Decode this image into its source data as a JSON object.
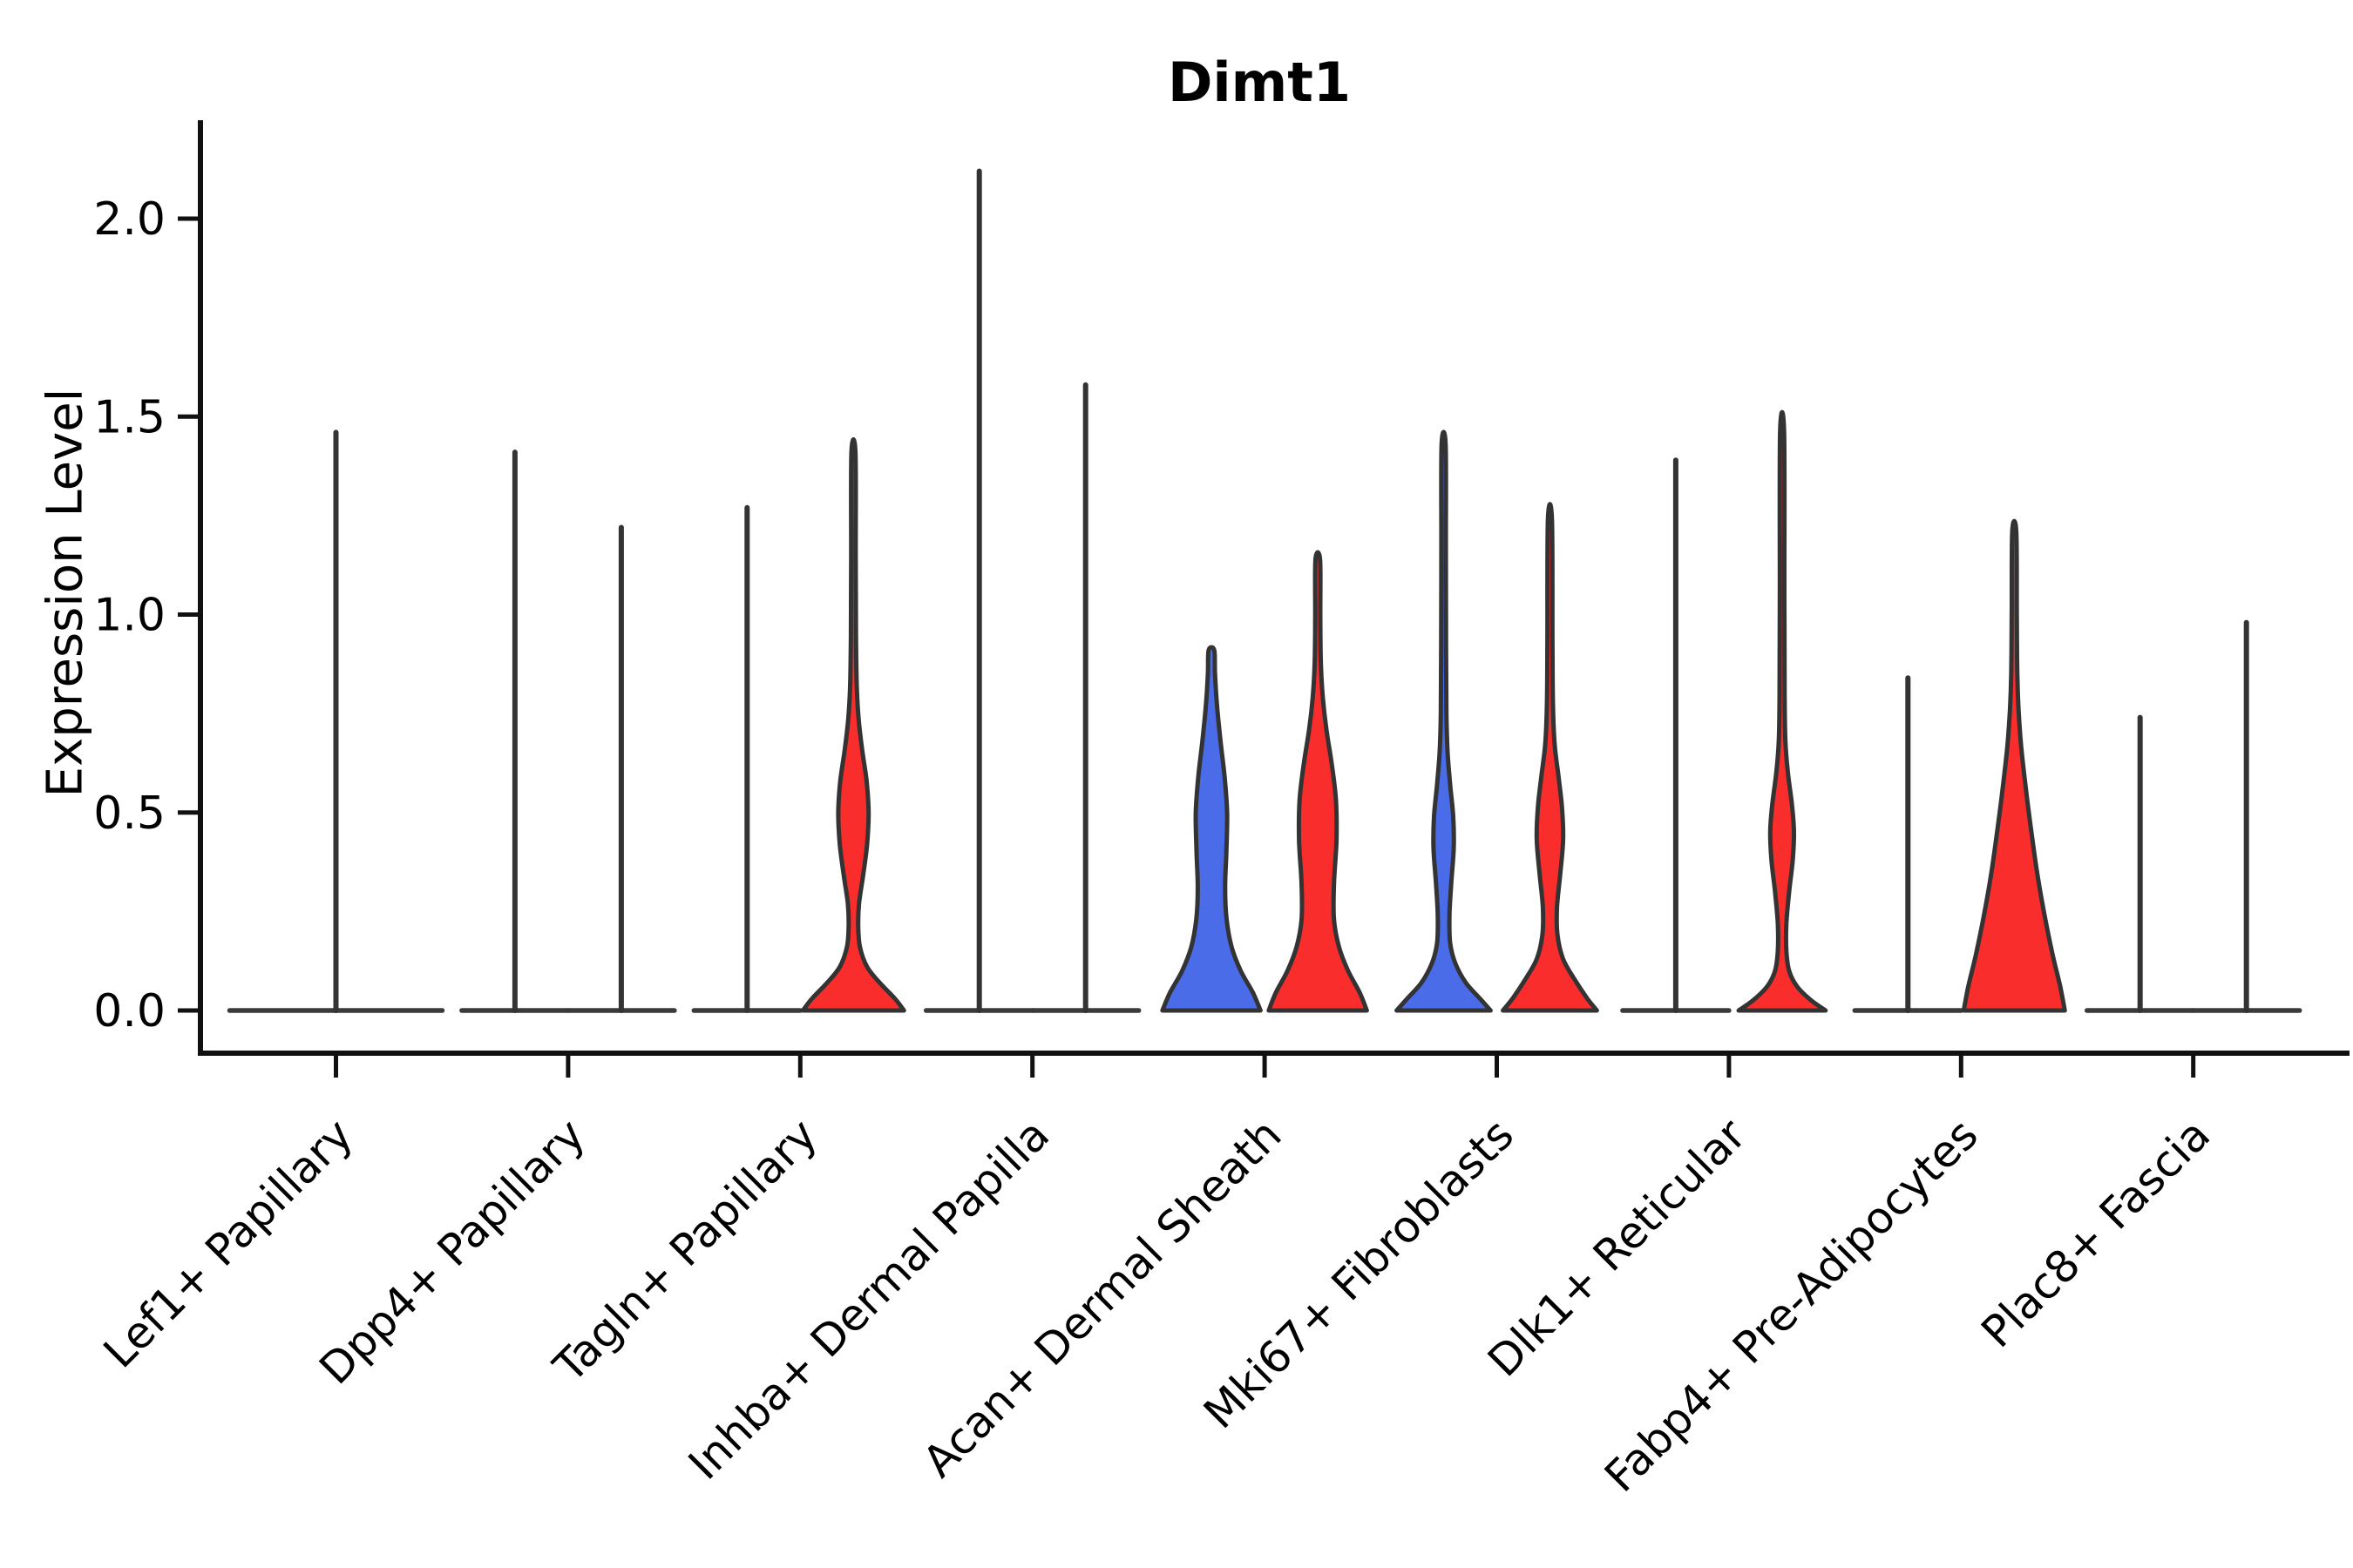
{
  "title": "Dimt1",
  "axes": {
    "ylabel": "Expression Level",
    "ytick_labels": [
      "0.0",
      "0.5",
      "1.0",
      "1.5",
      "2.0"
    ]
  },
  "colors": {
    "blue": "#4A6CE8",
    "red": "#FA2D2D",
    "outline": "#333333",
    "axis": "#111111",
    "text": "#000000",
    "background": "#FFFFFF"
  },
  "chart_data": {
    "type": "violin",
    "title": "Dimt1",
    "xlabel": "",
    "ylabel": "Expression Level",
    "ylim": [
      0,
      2.25
    ],
    "yticks": [
      0,
      0.5,
      1.0,
      1.5,
      2.0
    ],
    "grid": false,
    "legend": "none",
    "categories": [
      "Lef1+ Papillary",
      "Dpp4+ Papillary",
      "Tagln+ Papillary",
      "Inhba+ Dermal Papilla",
      "Acan+ Dermal Sheath",
      "Mki67+ Fibroblasts",
      "Dlk1+ Reticular",
      "Fabp4+ Pre-Adipocytes",
      "Plac8+ Fascia"
    ],
    "groups": [
      {
        "category": "Lef1+ Papillary",
        "violins": [
          {
            "type": "collapsed",
            "width": "full",
            "fill": null,
            "max": 1.46
          }
        ]
      },
      {
        "category": "Dpp4+ Papillary",
        "violins": [
          {
            "type": "collapsed",
            "fill": null,
            "max": 1.41
          },
          {
            "type": "collapsed",
            "fill": null,
            "max": 1.22
          }
        ]
      },
      {
        "category": "Tagln+ Papillary",
        "violins": [
          {
            "type": "collapsed",
            "fill": null,
            "max": 1.27
          },
          {
            "type": "shaped",
            "fill": "red",
            "max": 1.41,
            "profile": [
              [
                0,
                1.0
              ],
              [
                0.03,
                0.82
              ],
              [
                0.07,
                0.52
              ],
              [
                0.11,
                0.27
              ],
              [
                0.16,
                0.13
              ],
              [
                0.21,
                0.095
              ],
              [
                0.27,
                0.11
              ],
              [
                0.34,
                0.19
              ],
              [
                0.42,
                0.27
              ],
              [
                0.5,
                0.3
              ],
              [
                0.58,
                0.26
              ],
              [
                0.66,
                0.17
              ],
              [
                0.74,
                0.1
              ],
              [
                0.82,
                0.065
              ],
              [
                0.95,
                0.05
              ],
              [
                1.15,
                0.045
              ],
              [
                1.41,
                0.04
              ]
            ]
          }
        ]
      },
      {
        "category": "Inhba+ Dermal Papilla",
        "violins": [
          {
            "type": "collapsed",
            "fill": null,
            "max": 2.12
          },
          {
            "type": "collapsed",
            "fill": null,
            "max": 1.58
          }
        ]
      },
      {
        "category": "Acan+ Dermal Sheath",
        "violins": [
          {
            "type": "shaped",
            "fill": "blue",
            "max": 0.91,
            "profile": [
              [
                0,
                0.97
              ],
              [
                0.045,
                0.82
              ],
              [
                0.1,
                0.58
              ],
              [
                0.16,
                0.4
              ],
              [
                0.23,
                0.3
              ],
              [
                0.31,
                0.27
              ],
              [
                0.4,
                0.295
              ],
              [
                0.5,
                0.31
              ],
              [
                0.59,
                0.26
              ],
              [
                0.68,
                0.18
              ],
              [
                0.77,
                0.11
              ],
              [
                0.85,
                0.07
              ],
              [
                0.91,
                0.055
              ]
            ]
          },
          {
            "type": "shaped",
            "fill": "red",
            "max": 1.14,
            "profile": [
              [
                0,
                0.97
              ],
              [
                0.045,
                0.83
              ],
              [
                0.1,
                0.6
              ],
              [
                0.16,
                0.42
              ],
              [
                0.23,
                0.32
              ],
              [
                0.32,
                0.32
              ],
              [
                0.43,
                0.37
              ],
              [
                0.53,
                0.36
              ],
              [
                0.62,
                0.28
              ],
              [
                0.71,
                0.17
              ],
              [
                0.79,
                0.1
              ],
              [
                0.88,
                0.06
              ],
              [
                1.0,
                0.05
              ],
              [
                1.14,
                0.045
              ]
            ]
          }
        ]
      },
      {
        "category": "Mki67+ Fibroblasts",
        "violins": [
          {
            "type": "shaped",
            "fill": "blue",
            "max": 1.43,
            "profile": [
              [
                0,
                0.93
              ],
              [
                0.03,
                0.72
              ],
              [
                0.07,
                0.44
              ],
              [
                0.12,
                0.23
              ],
              [
                0.17,
                0.13
              ],
              [
                0.24,
                0.115
              ],
              [
                0.32,
                0.15
              ],
              [
                0.41,
                0.2
              ],
              [
                0.49,
                0.19
              ],
              [
                0.57,
                0.13
              ],
              [
                0.65,
                0.08
              ],
              [
                0.75,
                0.055
              ],
              [
                0.92,
                0.048
              ],
              [
                1.18,
                0.044
              ],
              [
                1.43,
                0.04
              ]
            ]
          },
          {
            "type": "shaped",
            "fill": "red",
            "max": 1.24,
            "profile": [
              [
                0,
                0.93
              ],
              [
                0.03,
                0.74
              ],
              [
                0.08,
                0.48
              ],
              [
                0.13,
                0.26
              ],
              [
                0.19,
                0.15
              ],
              [
                0.26,
                0.14
              ],
              [
                0.34,
                0.2
              ],
              [
                0.43,
                0.26
              ],
              [
                0.51,
                0.24
              ],
              [
                0.59,
                0.17
              ],
              [
                0.67,
                0.095
              ],
              [
                0.77,
                0.06
              ],
              [
                0.93,
                0.05
              ],
              [
                1.24,
                0.04
              ]
            ]
          }
        ]
      },
      {
        "category": "Dlk1+ Reticular",
        "violins": [
          {
            "type": "collapsed",
            "fill": null,
            "max": 1.39
          },
          {
            "type": "shaped",
            "fill": "red",
            "max": 1.46,
            "profile": [
              [
                0,
                0.86
              ],
              [
                0.025,
                0.58
              ],
              [
                0.06,
                0.3
              ],
              [
                0.1,
                0.14
              ],
              [
                0.15,
                0.085
              ],
              [
                0.22,
                0.085
              ],
              [
                0.3,
                0.14
              ],
              [
                0.38,
                0.21
              ],
              [
                0.45,
                0.235
              ],
              [
                0.52,
                0.195
              ],
              [
                0.6,
                0.115
              ],
              [
                0.68,
                0.065
              ],
              [
                0.8,
                0.05
              ],
              [
                1.05,
                0.045
              ],
              [
                1.46,
                0.04
              ]
            ]
          }
        ]
      },
      {
        "category": "Fabp4+ Pre-Adipocytes",
        "violins": [
          {
            "type": "collapsed",
            "fill": null,
            "max": 0.84
          },
          {
            "type": "shaped",
            "fill": "red",
            "max": 1.21,
            "profile": [
              [
                0,
                1.0
              ],
              [
                0.06,
                0.91
              ],
              [
                0.14,
                0.76
              ],
              [
                0.24,
                0.6
              ],
              [
                0.35,
                0.45
              ],
              [
                0.46,
                0.33
              ],
              [
                0.57,
                0.22
              ],
              [
                0.67,
                0.135
              ],
              [
                0.76,
                0.085
              ],
              [
                0.85,
                0.06
              ],
              [
                1.0,
                0.05
              ],
              [
                1.21,
                0.04
              ]
            ]
          }
        ]
      },
      {
        "category": "Plac8+ Fascia",
        "violins": [
          {
            "type": "collapsed",
            "fill": null,
            "max": 0.74
          },
          {
            "type": "collapsed",
            "fill": null,
            "max": 0.98
          }
        ]
      }
    ]
  }
}
